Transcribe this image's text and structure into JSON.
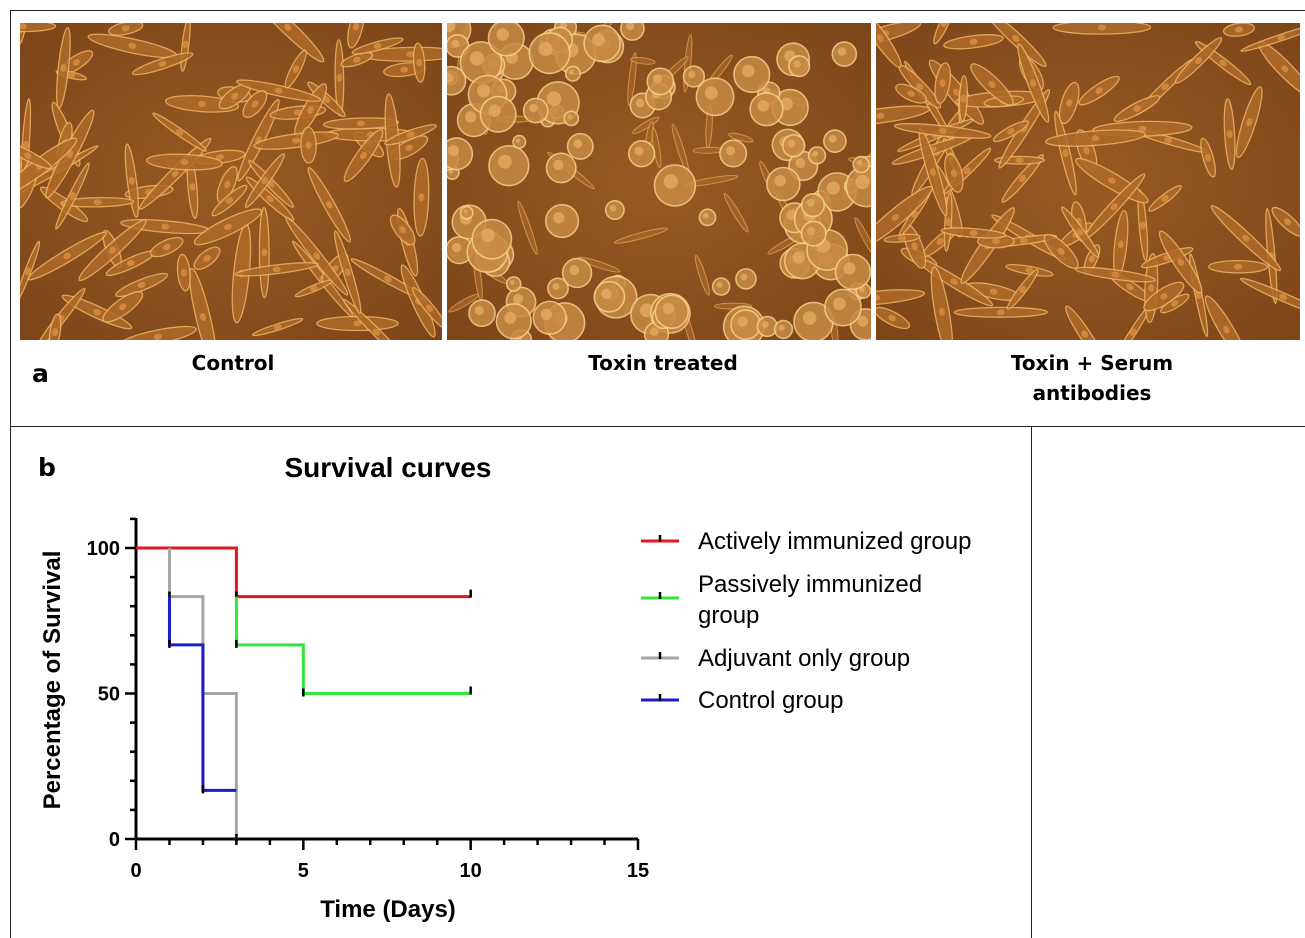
{
  "panel_a": {
    "label": "a",
    "images": [
      {
        "caption": "Control",
        "description_key": "control-cells"
      },
      {
        "caption": "Toxin treated",
        "description_key": "toxin-cells"
      },
      {
        "caption_line1": "Toxin + Serum",
        "caption_line2": "antibodies",
        "description_key": "serum-cells"
      }
    ]
  },
  "panel_b": {
    "label": "b"
  },
  "chart_data": {
    "type": "line",
    "step": true,
    "title": "Survival curves",
    "xlabel": "Time (Days)",
    "ylabel": "Percentage of Survival",
    "xlim": [
      0,
      15
    ],
    "ylim": [
      0,
      100
    ],
    "xticks": [
      0,
      5,
      10,
      15
    ],
    "yticks": [
      0,
      50,
      100
    ],
    "legend_position": "right",
    "series": [
      {
        "name": "Actively immunized group",
        "color": "#e8141c",
        "points": [
          [
            0,
            100
          ],
          [
            3,
            100
          ],
          [
            3,
            83.3
          ],
          [
            10,
            83.3
          ]
        ],
        "censored": [
          [
            10,
            83.3
          ]
        ]
      },
      {
        "name": "Passively immunized group",
        "color": "#33e63a",
        "points": [
          [
            3,
            83.3
          ],
          [
            3,
            66.7
          ],
          [
            5,
            66.7
          ],
          [
            5,
            50
          ],
          [
            10,
            50
          ]
        ],
        "censored": [
          [
            10,
            50
          ]
        ]
      },
      {
        "name": "Adjuvant only group",
        "color": "#a6a6a6",
        "points": [
          [
            1,
            100
          ],
          [
            1,
            83.3
          ],
          [
            2,
            83.3
          ],
          [
            2,
            50
          ],
          [
            3,
            50
          ],
          [
            3,
            0
          ]
        ],
        "censored": []
      },
      {
        "name": "Control group",
        "color": "#1c1cc8",
        "points": [
          [
            1,
            83.3
          ],
          [
            1,
            66.7
          ],
          [
            2,
            66.7
          ],
          [
            2,
            16.7
          ],
          [
            3,
            16.7
          ]
        ],
        "censored": []
      }
    ]
  }
}
